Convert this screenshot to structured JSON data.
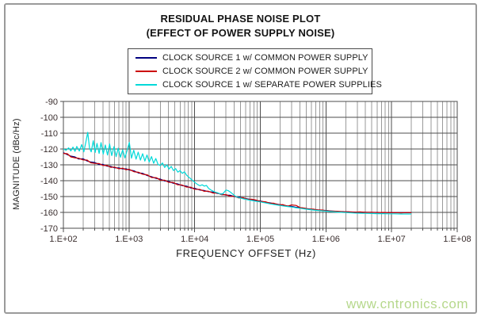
{
  "watermark": "www.cntronics.com",
  "chart_data": {
    "type": "line",
    "title": "RESIDUAL PHASE NOISE PLOT",
    "subtitle": "(EFFECT OF POWER SUPPLY NOISE)",
    "xlabel": "FREQUENCY OFFSET (Hz)",
    "ylabel": "MAGNITUDE (dBc/Hz)",
    "x_scale": "log",
    "x_range_exp": [
      2,
      8
    ],
    "x_tick_labels": [
      "1.E+02",
      "1.E+03",
      "1.E+04",
      "1.E+05",
      "1.E+06",
      "1.E+07",
      "1.E+08"
    ],
    "y_ticks": [
      -90,
      -100,
      -110,
      -120,
      -130,
      -140,
      -150,
      -160,
      -170
    ],
    "ylim": [
      -170,
      -90
    ],
    "grid": {
      "horizontal_major": true,
      "vertical_major": true,
      "vertical_log_minor": true
    },
    "legend_position": "top-center",
    "colors": {
      "grid_major": "#4d4d4d",
      "grid_minor": "#9a9a9a",
      "tick_label": "#3a2e2e"
    },
    "x_common": [
      100,
      115,
      130,
      150,
      170,
      200,
      230,
      260,
      300,
      350,
      400,
      460,
      530,
      600,
      700,
      800,
      900,
      1000,
      1200,
      1400,
      1600,
      1900,
      2200,
      2600,
      3000,
      3500,
      4000,
      4700,
      5500,
      6400,
      7500,
      8700,
      10000,
      12000,
      14000,
      16000,
      19000,
      22000,
      26000,
      30000,
      35000,
      40000,
      47000,
      55000,
      64000,
      75000,
      87000,
      100000,
      120000,
      140000,
      160000,
      190000,
      220000,
      260000,
      300000,
      350000,
      400000,
      470000,
      550000,
      640000,
      750000,
      870000,
      1000000,
      1200000,
      1500000,
      1800000,
      2200000,
      2700000,
      3300000,
      4000000,
      5000000,
      6000000,
      7500000,
      9000000,
      11000000,
      14000000,
      17000000,
      20000000
    ],
    "series": [
      {
        "name": "CLOCK SOURCE 1 w/ COMMON POWER SUPPLY",
        "color": "#000080",
        "values": [
          -122.3,
          -123.6,
          -124.5,
          -125.0,
          -126.3,
          -126.2,
          -127.6,
          -128.2,
          -128.5,
          -129.8,
          -129.7,
          -130.8,
          -131.0,
          -131.9,
          -131.9,
          -132.6,
          -132.5,
          -133.2,
          -133.8,
          -135.2,
          -135.3,
          -136.8,
          -137.5,
          -138.6,
          -139.0,
          -140.2,
          -140.4,
          -141.6,
          -142.0,
          -143.1,
          -143.4,
          -144.6,
          -144.8,
          -145.9,
          -146.2,
          -146.9,
          -147.2,
          -148.0,
          -148.4,
          -149.1,
          -149.2,
          -150.0,
          -150.3,
          -151.0,
          -151.5,
          -151.9,
          -152.6,
          -152.8,
          -153.6,
          -154.0,
          -154.4,
          -155.0,
          -155.4,
          -155.9,
          -156.2,
          -156.8,
          -157.0,
          -157.4,
          -157.8,
          -158.1,
          -158.4,
          -158.6,
          -158.8,
          -159.1,
          -159.4,
          -159.5,
          -159.7,
          -159.8,
          -159.8,
          -159.9,
          -160.0,
          -160.0,
          -160.1,
          -160.1,
          -160.2,
          -160.2,
          -160.2,
          -160.2
        ]
      },
      {
        "name": "CLOCK SOURCE 2 w/ COMMON POWER SUPPLY",
        "color": "#cc0000",
        "values": [
          -122.8,
          -123.0,
          -125.0,
          -125.6,
          -125.8,
          -126.9,
          -127.0,
          -128.7,
          -129.1,
          -129.2,
          -130.4,
          -130.3,
          -131.6,
          -131.4,
          -132.5,
          -132.1,
          -133.1,
          -132.8,
          -134.4,
          -134.7,
          -135.9,
          -136.3,
          -138.0,
          -138.1,
          -139.6,
          -139.7,
          -141.0,
          -141.1,
          -142.6,
          -142.7,
          -144.0,
          -144.1,
          -145.4,
          -145.5,
          -146.7,
          -146.6,
          -147.8,
          -147.7,
          -148.9,
          -148.8,
          -149.9,
          -149.7,
          -150.9,
          -150.7,
          -151.8,
          -151.7,
          -152.3,
          -153.1,
          -153.3,
          -154.3,
          -154.2,
          -155.2,
          -155.1,
          -156.1,
          -155.3,
          -155.6,
          -156.9,
          -157.3,
          -158.0,
          -157.9,
          -158.5,
          -158.5,
          -158.9,
          -159.2,
          -159.3,
          -159.6,
          -159.6,
          -159.9,
          -159.7,
          -160.0,
          -159.9,
          -160.1,
          -160.0,
          -160.2,
          -160.1,
          -160.3,
          -160.1,
          -160.2
        ]
      },
      {
        "name": "CLOCK SOURCE 1 w/ SEPARATE POWER SUPPLIES",
        "color": "#00d9d9",
        "points": [
          [
            100,
            -120.0
          ],
          [
            110,
            -120.8
          ],
          [
            120,
            -119.3
          ],
          [
            130,
            -121.2
          ],
          [
            140,
            -118.8
          ],
          [
            150,
            -121.5
          ],
          [
            160,
            -118.4
          ],
          [
            175,
            -121.3
          ],
          [
            190,
            -117.2
          ],
          [
            205,
            -121.8
          ],
          [
            220,
            -115.5
          ],
          [
            235,
            -109.5
          ],
          [
            250,
            -119.5
          ],
          [
            265,
            -121.8
          ],
          [
            285,
            -114.8
          ],
          [
            305,
            -122.2
          ],
          [
            325,
            -116.5
          ],
          [
            350,
            -122.8
          ],
          [
            375,
            -116.0
          ],
          [
            405,
            -123.2
          ],
          [
            435,
            -117.5
          ],
          [
            470,
            -123.8
          ],
          [
            505,
            -116.8
          ],
          [
            545,
            -124.2
          ],
          [
            590,
            -118.5
          ],
          [
            635,
            -124.8
          ],
          [
            685,
            -119.5
          ],
          [
            740,
            -125.2
          ],
          [
            800,
            -120.5
          ],
          [
            865,
            -125.6
          ],
          [
            935,
            -121.0
          ],
          [
            1010,
            -115.8
          ],
          [
            1090,
            -125.8
          ],
          [
            1180,
            -120.8
          ],
          [
            1280,
            -126.4
          ],
          [
            1380,
            -122.0
          ],
          [
            1490,
            -127.0
          ],
          [
            1610,
            -123.0
          ],
          [
            1740,
            -127.6
          ],
          [
            1880,
            -123.8
          ],
          [
            2030,
            -128.2
          ],
          [
            2200,
            -124.8
          ],
          [
            2370,
            -129.0
          ],
          [
            2560,
            -126.0
          ],
          [
            2770,
            -129.8
          ],
          [
            2990,
            -130.4
          ],
          [
            3230,
            -128.8
          ],
          [
            3490,
            -131.6
          ],
          [
            3770,
            -130.0
          ],
          [
            4070,
            -132.6
          ],
          [
            4400,
            -131.0
          ],
          [
            4750,
            -133.6
          ],
          [
            5130,
            -132.4
          ],
          [
            5540,
            -134.6
          ],
          [
            5990,
            -133.6
          ],
          [
            6470,
            -135.4
          ],
          [
            6990,
            -134.4
          ],
          [
            7550,
            -136.6
          ],
          [
            8150,
            -137.8
          ],
          [
            8810,
            -139.0
          ],
          [
            9510,
            -140.2
          ],
          [
            10300,
            -141.4
          ],
          [
            11100,
            -142.4
          ],
          [
            12000,
            -143.2
          ],
          [
            13000,
            -142.6
          ],
          [
            14000,
            -143.4
          ],
          [
            15100,
            -143.0
          ],
          [
            16300,
            -144.8
          ],
          [
            17600,
            -145.8
          ],
          [
            19000,
            -146.6
          ],
          [
            20600,
            -147.2
          ],
          [
            22200,
            -147.6
          ],
          [
            24000,
            -148.2
          ],
          [
            26000,
            -148.6
          ],
          [
            28000,
            -147.4
          ],
          [
            30000,
            -145.9
          ],
          [
            32500,
            -146.3
          ],
          [
            35000,
            -147.2
          ],
          [
            38000,
            -148.4
          ],
          [
            41000,
            -149.6
          ],
          [
            44000,
            -150.3
          ],
          [
            48000,
            -150.8
          ],
          [
            55000,
            -151.4
          ],
          [
            64000,
            -152.0
          ],
          [
            75000,
            -152.6
          ],
          [
            87000,
            -153.0
          ],
          [
            100000,
            -153.4
          ],
          [
            120000,
            -154.0
          ],
          [
            140000,
            -154.6
          ],
          [
            160000,
            -155.0
          ],
          [
            190000,
            -155.5
          ],
          [
            220000,
            -155.9
          ],
          [
            260000,
            -156.3
          ],
          [
            300000,
            -156.6
          ],
          [
            350000,
            -157.1
          ],
          [
            400000,
            -157.4
          ],
          [
            470000,
            -157.8
          ],
          [
            550000,
            -158.2
          ],
          [
            640000,
            -158.5
          ],
          [
            750000,
            -158.8
          ],
          [
            870000,
            -159.0
          ],
          [
            1000000,
            -159.2
          ],
          [
            1200000,
            -159.5
          ],
          [
            1500000,
            -159.8
          ],
          [
            1800000,
            -160.0
          ],
          [
            2200000,
            -160.2
          ],
          [
            2700000,
            -160.4
          ],
          [
            3300000,
            -160.5
          ],
          [
            4000000,
            -160.6
          ],
          [
            5000000,
            -160.7
          ],
          [
            6000000,
            -160.8
          ],
          [
            7500000,
            -160.8
          ],
          [
            9000000,
            -160.9
          ],
          [
            11000000,
            -160.9
          ],
          [
            14000000,
            -161.0
          ],
          [
            17000000,
            -161.0
          ],
          [
            20000000,
            -161.0
          ]
        ]
      }
    ]
  }
}
